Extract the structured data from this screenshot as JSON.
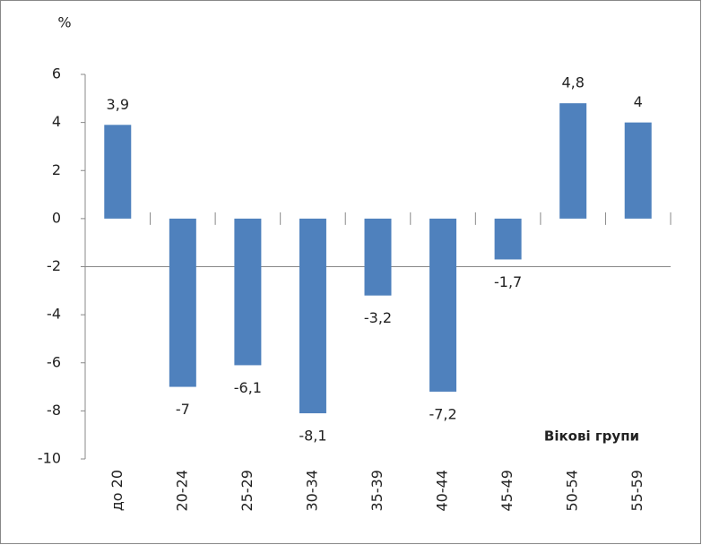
{
  "chart_data": {
    "type": "bar",
    "y_unit_label": "%",
    "x_axis_label": "Вікові групи",
    "categories": [
      "до 20",
      "20-24",
      "25-29",
      "30-34",
      "35-39",
      "40-44",
      "45-49",
      "50-54",
      "55-59"
    ],
    "values": [
      3.9,
      -7,
      -6.1,
      -8.1,
      -3.2,
      -7.2,
      -1.7,
      4.8,
      4
    ],
    "value_labels": [
      "3,9",
      "-7",
      "-6,1",
      "-8,1",
      "-3,2",
      "-7,2",
      "-1,7",
      "4,8",
      "4"
    ],
    "color": "#4f81bd",
    "ylim": [
      -10,
      6
    ],
    "yticks": [
      6,
      4,
      2,
      0,
      -2,
      -4,
      -6,
      -8,
      -10
    ],
    "x_axis_crosses": -2,
    "grid": false
  }
}
